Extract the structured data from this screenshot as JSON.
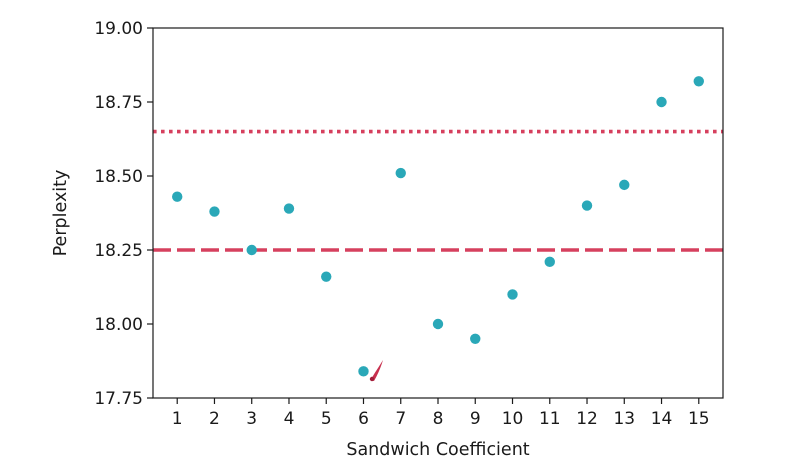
{
  "chart_data": {
    "type": "scatter",
    "xlabel": "Sandwich Coefficient",
    "ylabel": "Perplexity",
    "x": [
      1,
      2,
      3,
      4,
      5,
      6,
      7,
      8,
      9,
      10,
      11,
      12,
      13,
      14,
      15
    ],
    "series": [
      {
        "color": "#2aa8b8",
        "values": [
          18.43,
          18.38,
          18.25,
          18.39,
          18.16,
          17.84,
          18.51,
          18.0,
          17.95,
          18.1,
          18.21,
          18.4,
          18.47,
          18.75,
          18.82
        ]
      }
    ],
    "reference_lines": [
      {
        "y": 18.65,
        "style": "dotted",
        "color": "#d6405e"
      },
      {
        "y": 18.25,
        "style": "dashed",
        "color": "#d6405e"
      }
    ],
    "xlim": [
      0.35,
      15.65
    ],
    "ylim": [
      17.75,
      19.0
    ],
    "x_ticks": [
      1,
      2,
      3,
      4,
      5,
      6,
      7,
      8,
      9,
      10,
      11,
      12,
      13,
      14,
      15
    ],
    "y_ticks": [
      "17.75",
      "18.00",
      "18.25",
      "18.50",
      "18.75",
      "19.00"
    ],
    "grid": false,
    "cursor_icon": "pen-cursor-icon"
  }
}
